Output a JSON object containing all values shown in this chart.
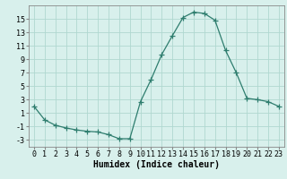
{
  "x": [
    0,
    1,
    2,
    3,
    4,
    5,
    6,
    7,
    8,
    9,
    10,
    11,
    12,
    13,
    14,
    15,
    16,
    17,
    18,
    19,
    20,
    21,
    22,
    23
  ],
  "y": [
    2,
    0,
    -0.8,
    -1.2,
    -1.5,
    -1.7,
    -1.8,
    -2.2,
    -2.8,
    -2.8,
    2.7,
    6.0,
    9.7,
    12.5,
    15.2,
    16.0,
    15.8,
    14.8,
    10.3,
    7.0,
    3.2,
    3.0,
    2.7,
    2.0
  ],
  "line_color": "#2e7d6e",
  "marker": "+",
  "marker_size": 4,
  "bg_color": "#d8f0ec",
  "grid_color": "#b0d8d0",
  "xlabel": "Humidex (Indice chaleur)",
  "yticks": [
    -3,
    -1,
    1,
    3,
    5,
    7,
    9,
    11,
    13,
    15
  ],
  "ylim": [
    -4,
    17
  ],
  "xlim": [
    -0.5,
    23.5
  ],
  "label_fontsize": 7,
  "tick_fontsize": 6
}
